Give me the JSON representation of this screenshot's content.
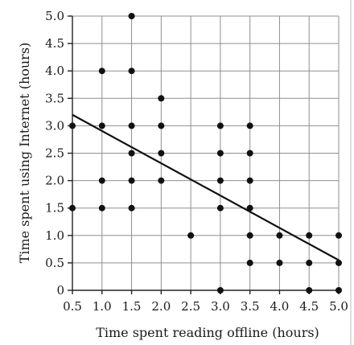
{
  "chart_data": {
    "type": "scatter",
    "xlabel": "Time spent reading offline (hours)",
    "ylabel": "Time spent using Internet (hours)",
    "xlim": [
      0.5,
      5.0
    ],
    "ylim": [
      0,
      5.0
    ],
    "x_ticks": [
      "0.5",
      "1.0",
      "1.5",
      "2.0",
      "2.5",
      "3.0",
      "3.5",
      "4.0",
      "4.5",
      "5.0"
    ],
    "y_ticks": [
      "0",
      "0.5",
      "1.0",
      "1.5",
      "2.0",
      "2.5",
      "3.0",
      "3.5",
      "4.0",
      "4.5",
      "5.0"
    ],
    "grid": true,
    "points": [
      [
        0.5,
        1.5
      ],
      [
        0.5,
        3.0
      ],
      [
        1.0,
        1.5
      ],
      [
        1.0,
        2.0
      ],
      [
        1.0,
        3.0
      ],
      [
        1.0,
        4.0
      ],
      [
        1.5,
        1.5
      ],
      [
        1.5,
        2.0
      ],
      [
        1.5,
        2.5
      ],
      [
        1.5,
        3.0
      ],
      [
        1.5,
        4.0
      ],
      [
        1.5,
        5.0
      ],
      [
        2.0,
        2.0
      ],
      [
        2.0,
        2.5
      ],
      [
        2.0,
        3.0
      ],
      [
        2.0,
        3.5
      ],
      [
        2.5,
        1.0
      ],
      [
        3.0,
        0
      ],
      [
        3.0,
        1.5
      ],
      [
        3.0,
        2.0
      ],
      [
        3.0,
        2.5
      ],
      [
        3.0,
        3.0
      ],
      [
        3.5,
        0.5
      ],
      [
        3.5,
        1.0
      ],
      [
        3.5,
        1.5
      ],
      [
        3.5,
        2.0
      ],
      [
        3.5,
        2.5
      ],
      [
        3.5,
        3.0
      ],
      [
        4.0,
        0.5
      ],
      [
        4.0,
        1.0
      ],
      [
        4.5,
        0
      ],
      [
        4.5,
        0.5
      ],
      [
        4.5,
        1.0
      ],
      [
        5.0,
        0
      ],
      [
        5.0,
        0.5
      ],
      [
        5.0,
        1.0
      ]
    ],
    "trend_line": {
      "x": [
        0.5,
        5.0
      ],
      "y": [
        3.2,
        0.55
      ]
    }
  }
}
